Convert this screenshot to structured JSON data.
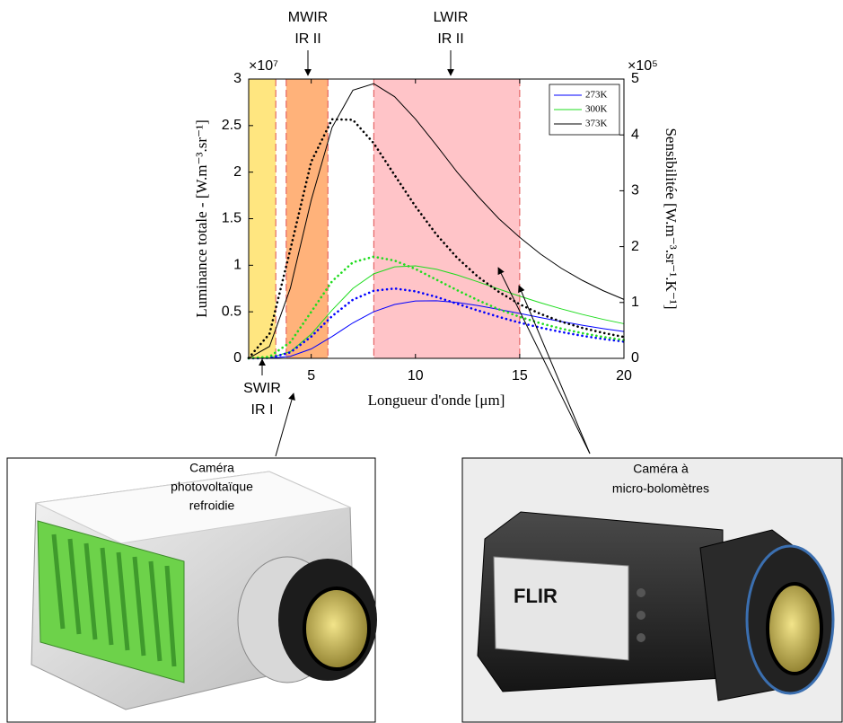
{
  "chart_data": {
    "type": "line",
    "x_label": "Longueur d'onde [μm]",
    "y_label": "Luminance totale - [W.m⁻³.sr⁻¹]",
    "y2_label": "Sensibilitée [W.m⁻³.sr⁻¹.K⁻¹]",
    "y_exponent": "×10⁷",
    "y2_exponent": "×10⁵",
    "x": [
      2,
      3,
      4,
      5,
      6,
      7,
      8,
      9,
      10,
      11,
      12,
      13,
      14,
      15,
      16,
      17,
      18,
      19,
      20
    ],
    "series": [
      {
        "name": "273K",
        "color": "#0000ff",
        "values": [
          1.3e-06,
          0.00115,
          0.0221,
          0.101,
          0.235,
          0.381,
          0.501,
          0.579,
          0.616,
          0.619,
          0.6,
          0.567,
          0.526,
          0.482,
          0.438,
          0.396,
          0.356,
          0.32,
          0.288
        ]
      },
      {
        "name": "300K",
        "color": "#1fdc1f",
        "values": [
          1.43e-05,
          0.0056,
          0.0722,
          0.26,
          0.518,
          0.751,
          0.908,
          0.983,
          0.993,
          0.957,
          0.896,
          0.822,
          0.744,
          0.668,
          0.597,
          0.531,
          0.472,
          0.419,
          0.372
        ]
      },
      {
        "name": "373K",
        "color": "#000000",
        "values": [
          0.0016,
          0.128,
          0.754,
          1.7,
          2.48,
          2.88,
          2.95,
          2.81,
          2.57,
          2.29,
          2.0,
          1.74,
          1.5,
          1.3,
          1.12,
          0.967,
          0.838,
          0.727,
          0.633
        ]
      },
      {
        "name": "273K",
        "color": "#0000ff",
        "axis": "y2",
        "dash": "dotted",
        "values": [
          1.3e-05,
          0.0074,
          0.107,
          0.389,
          0.756,
          1.05,
          1.21,
          1.25,
          1.2,
          1.1,
          0.977,
          0.856,
          0.742,
          0.639,
          0.549,
          0.471,
          0.404,
          0.347,
          0.299
        ]
      },
      {
        "name": "300K",
        "color": "#1fdc1f",
        "axis": "y2",
        "dash": "dotted",
        "values": [
          0.00011,
          0.0298,
          0.289,
          0.832,
          1.38,
          1.72,
          1.82,
          1.75,
          1.6,
          1.41,
          1.22,
          1.04,
          0.878,
          0.743,
          0.627,
          0.531,
          0.451,
          0.383,
          0.327
        ]
      },
      {
        "name": "373K",
        "color": "#000000",
        "axis": "y2",
        "dash": "dotted",
        "values": [
          0.0081,
          0.44,
          1.95,
          3.52,
          4.28,
          4.27,
          3.85,
          3.28,
          2.72,
          2.22,
          1.8,
          1.46,
          1.19,
          0.968,
          0.795,
          0.656,
          0.545,
          0.456,
          0.383
        ]
      }
    ],
    "bands": [
      {
        "x0": 2,
        "x1": 3.3,
        "color": "#ffe680"
      },
      {
        "x0": 3.8,
        "x1": 5.8,
        "color": "#ffb27a"
      },
      {
        "x0": 8,
        "x1": 15,
        "color": "#ffc4c8"
      }
    ],
    "xlim": [
      2,
      20
    ],
    "xticks": [
      5,
      10,
      15,
      20
    ],
    "ylim": [
      0,
      3
    ],
    "yticks": [
      0,
      0.5,
      1,
      1.5,
      2,
      2.5,
      3
    ],
    "y2lim": [
      0,
      5
    ],
    "y2ticks": [
      0,
      1,
      2,
      3,
      4,
      5
    ],
    "grid": false,
    "legend": "top-right",
    "annotations": [
      {
        "text": [
          "MWIR",
          "IR II"
        ]
      },
      {
        "text": [
          "LWIR",
          "IR II"
        ]
      },
      {
        "text": [
          "SWIR",
          "IR I"
        ]
      }
    ]
  },
  "photos": [
    {
      "caption": [
        "Caméra",
        "photovoltaïque",
        "refroidie"
      ]
    },
    {
      "caption": [
        "Caméra à",
        "micro-bolomètres"
      ],
      "brand": "FLIR"
    }
  ]
}
